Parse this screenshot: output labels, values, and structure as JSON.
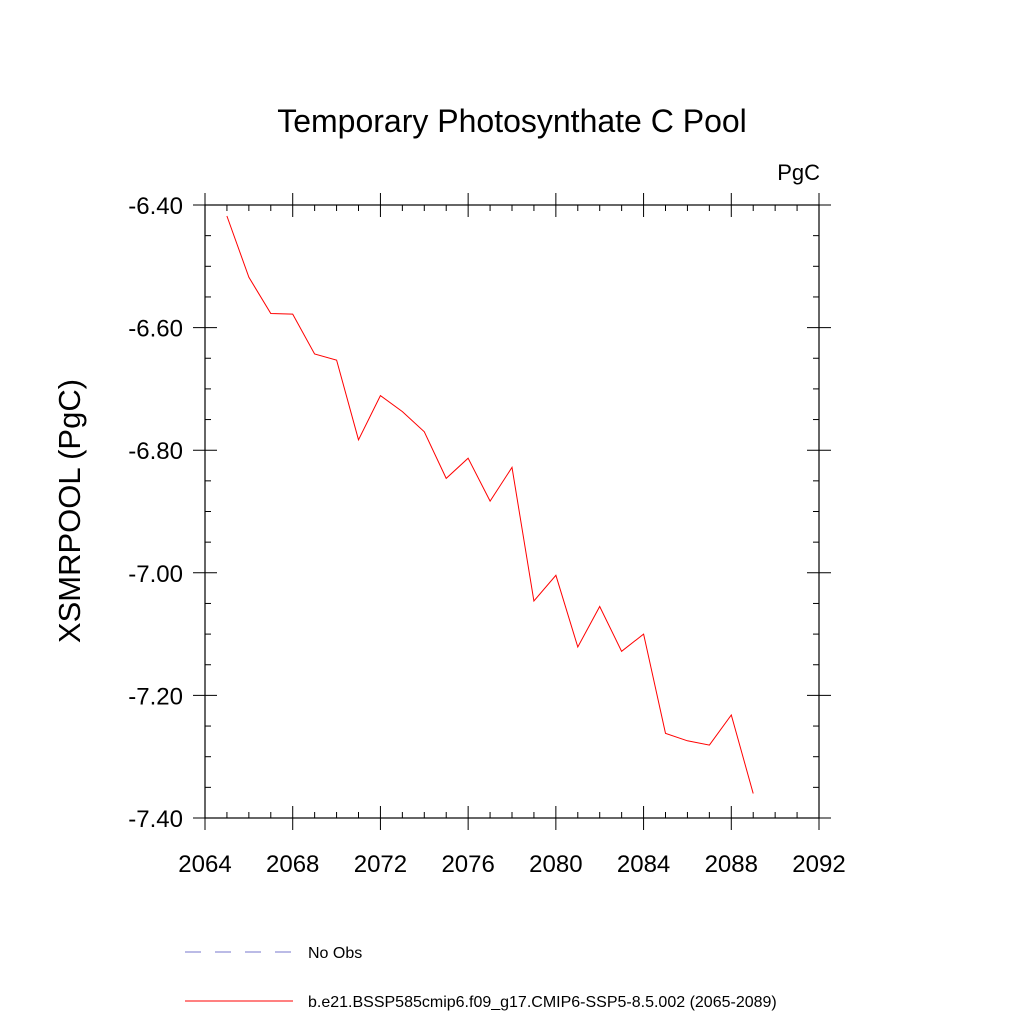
{
  "chart_data": {
    "type": "line",
    "title": "Temporary Photosynthate C Pool",
    "units_label": "PgC",
    "ylabel": "XSMRPOOL  (PgC)",
    "xlabel": "",
    "xlim": [
      2064,
      2092
    ],
    "ylim": [
      -7.4,
      -6.4
    ],
    "x_ticks": [
      2064,
      2068,
      2072,
      2076,
      2080,
      2084,
      2088,
      2092
    ],
    "x_tick_labels": [
      "2064",
      "2068",
      "2072",
      "2076",
      "2080",
      "2084",
      "2088",
      "2092"
    ],
    "y_ticks": [
      -6.4,
      -6.6,
      -6.8,
      -7.0,
      -7.2,
      -7.4
    ],
    "y_tick_labels": [
      "-6.40",
      "-6.60",
      "-6.80",
      "-7.00",
      "-7.20",
      "-7.40"
    ],
    "grid": false,
    "legend_position": "bottom",
    "series": [
      {
        "name": "b.e21.BSSP585cmip6.f09_g17.CMIP6-SSP5-8.5.002 (2065-2089)",
        "color": "#ff0000",
        "style": "solid",
        "x": [
          2065,
          2066,
          2067,
          2068,
          2069,
          2070,
          2071,
          2072,
          2073,
          2074,
          2075,
          2076,
          2077,
          2078,
          2079,
          2080,
          2081,
          2082,
          2083,
          2084,
          2085,
          2086,
          2087,
          2088,
          2089
        ],
        "y": [
          -6.418,
          -6.518,
          -6.577,
          -6.578,
          -6.643,
          -6.653,
          -6.783,
          -6.711,
          -6.737,
          -6.77,
          -6.846,
          -6.813,
          -6.883,
          -6.828,
          -7.046,
          -7.004,
          -7.121,
          -7.055,
          -7.128,
          -7.1,
          -7.262,
          -7.274,
          -7.281,
          -7.232,
          -7.36
        ]
      }
    ],
    "legend": [
      {
        "label": "No Obs",
        "color": "#7777cc",
        "style": "dashed"
      },
      {
        "label": "b.e21.BSSP585cmip6.f09_g17.CMIP6-SSP5-8.5.002 (2065-2089)",
        "color": "#ff0000",
        "style": "solid"
      }
    ]
  }
}
